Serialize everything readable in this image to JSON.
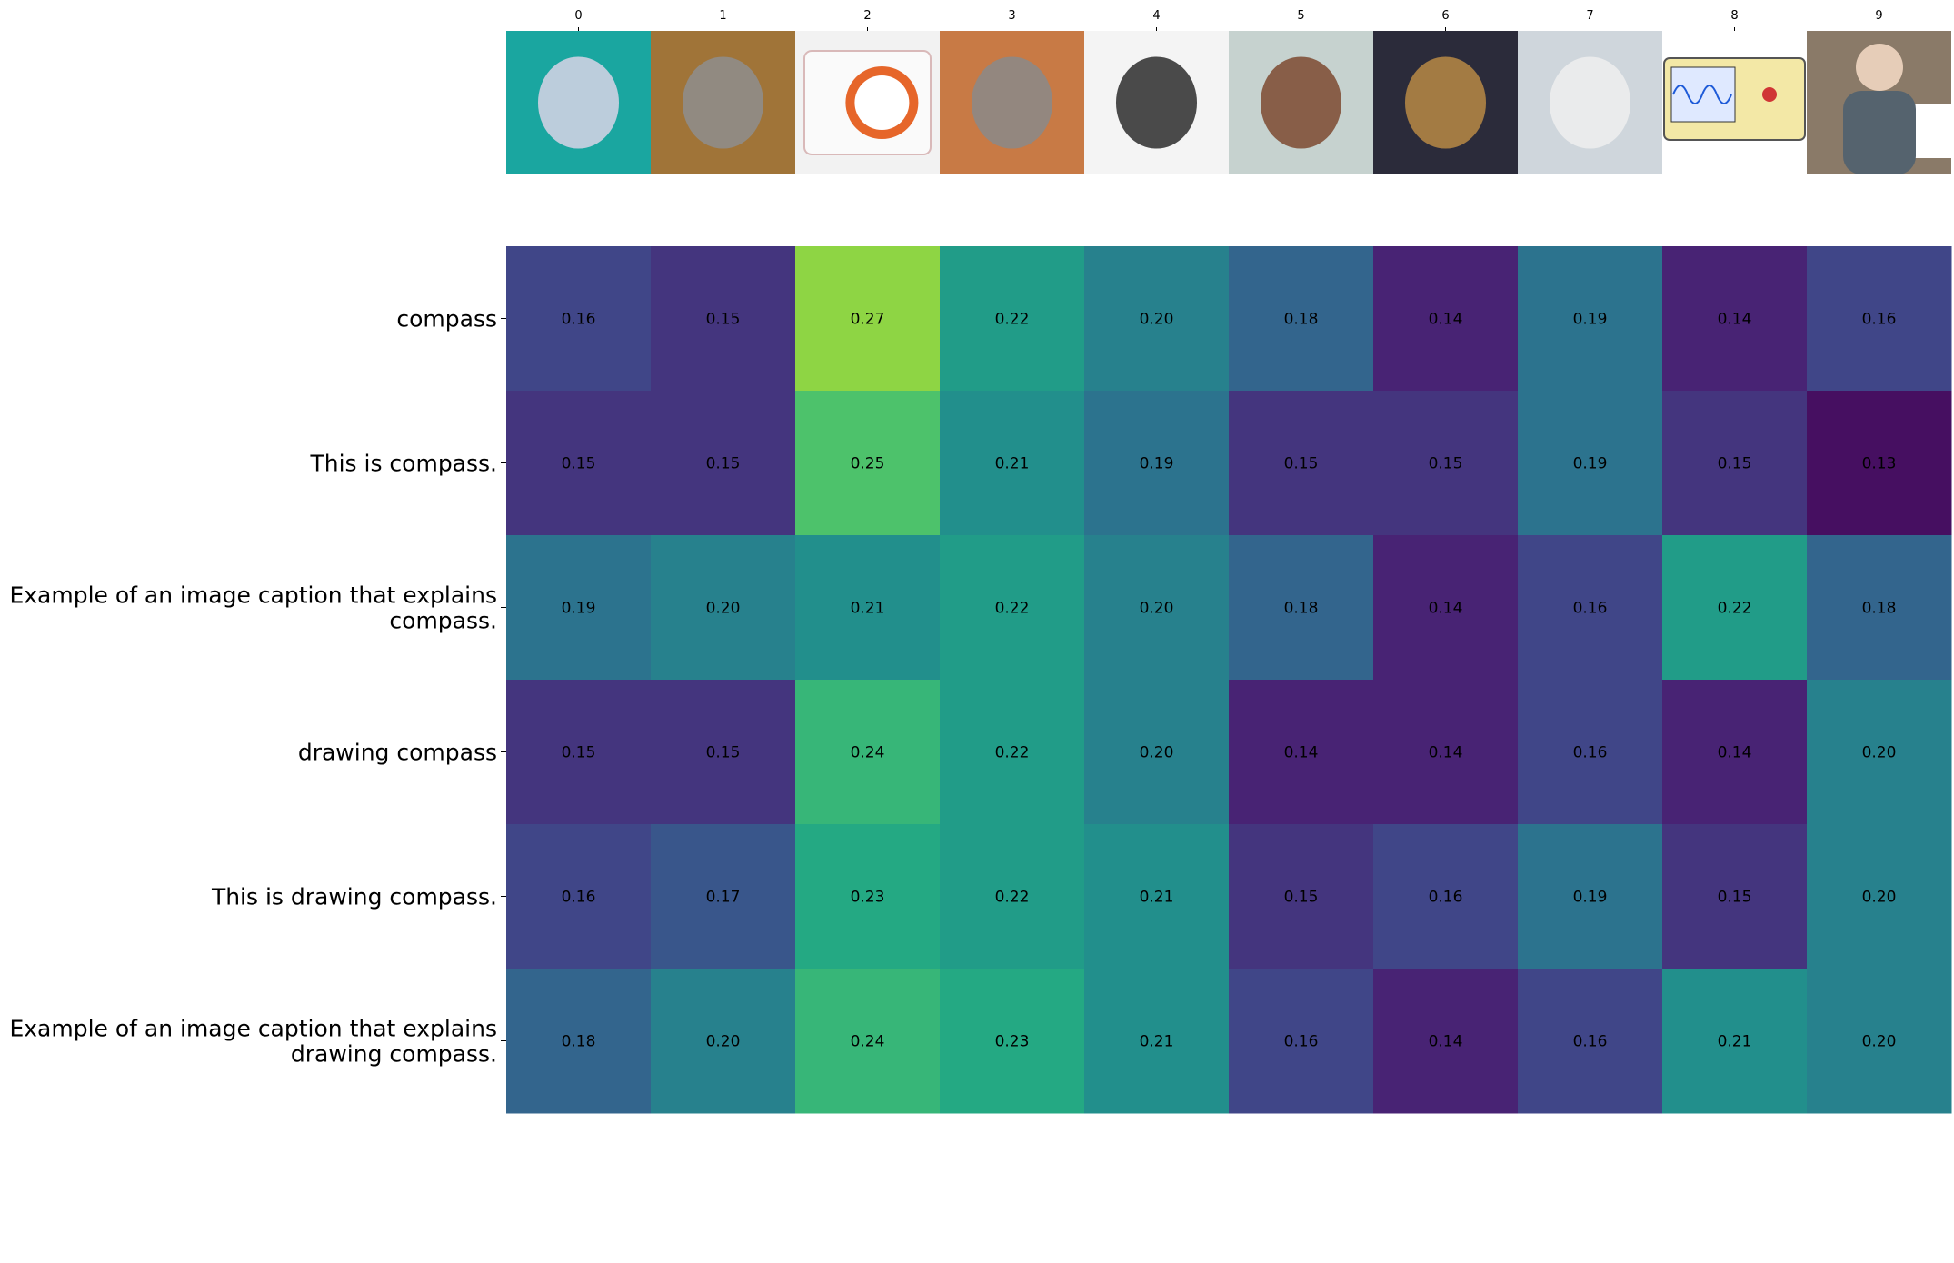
{
  "chart_data": {
    "type": "heatmap",
    "title": "",
    "xlabel": "",
    "ylabel": "",
    "x_ticks": [
      "0",
      "1",
      "2",
      "3",
      "4",
      "5",
      "6",
      "7",
      "8",
      "9"
    ],
    "thumbnails": [
      {
        "icon": "spoon-photo-icon",
        "bg": "#1aa6a0",
        "fg": "#d9d4e6"
      },
      {
        "icon": "bench-vise-photo-icon",
        "bg": "#a07438",
        "fg": "#8e8e8e"
      },
      {
        "icon": "orienteering-compass-photo-icon",
        "bg": "#f2f2f2",
        "fg": "#e6662a"
      },
      {
        "icon": "drafting-divider-photo-icon",
        "bg": "#c87a45",
        "fg": "#8a8a8a"
      },
      {
        "icon": "drawing-compass-set-photo-icon",
        "bg": "#f4f4f4",
        "fg": "#2c2c2c"
      },
      {
        "icon": "wooden-spindle-photo-icon",
        "bg": "#c6d2cf",
        "fg": "#7d4a30"
      },
      {
        "icon": "spinning-wheel-photo-icon",
        "bg": "#2b2b3a",
        "fg": "#b88a45"
      },
      {
        "icon": "sewing-machine-photo-icon",
        "bg": "#cfd6dc",
        "fg": "#eeeeee"
      },
      {
        "icon": "oscilloscope-diagram-icon",
        "bg": "#ffffff",
        "fg": "#f3e8a6"
      },
      {
        "icon": "man-writing-photo-icon",
        "bg": "#8a7a68",
        "fg": "#e6cdb8"
      }
    ],
    "rows": [
      "compass",
      "This is compass.",
      "Example of an image caption that explains compass.",
      "drawing compass",
      "This is drawing compass.",
      "Example of an image caption that explains drawing compass."
    ],
    "row_lines": [
      [
        "compass"
      ],
      [
        "This is compass."
      ],
      [
        "Example of an image caption that explains",
        "compass."
      ],
      [
        "drawing compass"
      ],
      [
        "This is drawing compass."
      ],
      [
        "Example of an image caption that explains",
        "drawing compass."
      ]
    ],
    "values": [
      [
        0.16,
        0.15,
        0.27,
        0.22,
        0.2,
        0.18,
        0.14,
        0.19,
        0.14,
        0.16
      ],
      [
        0.15,
        0.15,
        0.25,
        0.21,
        0.19,
        0.15,
        0.15,
        0.19,
        0.15,
        0.13
      ],
      [
        0.19,
        0.2,
        0.21,
        0.22,
        0.2,
        0.18,
        0.14,
        0.16,
        0.22,
        0.18
      ],
      [
        0.15,
        0.15,
        0.24,
        0.22,
        0.2,
        0.14,
        0.14,
        0.16,
        0.14,
        0.2
      ],
      [
        0.16,
        0.17,
        0.23,
        0.22,
        0.21,
        0.15,
        0.16,
        0.19,
        0.15,
        0.2
      ],
      [
        0.18,
        0.2,
        0.24,
        0.23,
        0.21,
        0.16,
        0.14,
        0.16,
        0.21,
        0.2
      ]
    ],
    "colormap": "viridis",
    "grid": false,
    "legend": "none"
  }
}
